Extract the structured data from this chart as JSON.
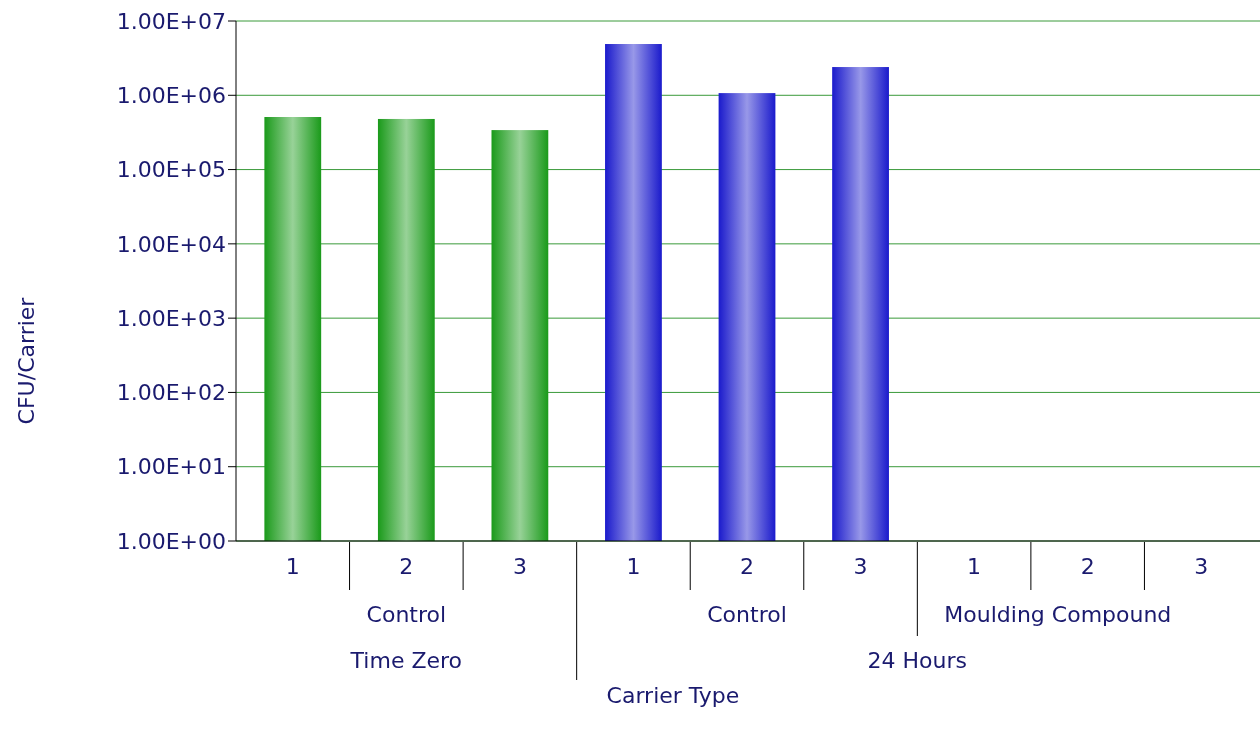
{
  "chart_data": {
    "type": "bar",
    "ylabel": "CFU/Carrier",
    "xlabel": "Carrier Type",
    "categories": [
      "1",
      "2",
      "3",
      "1",
      "2",
      "3",
      "1",
      "2",
      "3"
    ],
    "values": [
      510000,
      480000,
      340000,
      4900000,
      1070000,
      2400000,
      null,
      null,
      null
    ],
    "colors": [
      "#1a9a1a",
      "#1a9a1a",
      "#1a9a1a",
      "#1a1acc",
      "#1a1acc",
      "#1a1acc",
      "#1a1acc",
      "#1a1acc",
      "#1a1acc"
    ],
    "log": true,
    "grid": "y",
    "ylim": [
      1,
      10000000
    ],
    "yticks": [
      {
        "value": 1,
        "label": "1.00E+00"
      },
      {
        "value": 10,
        "label": "1.00E+01"
      },
      {
        "value": 100,
        "label": "1.00E+02"
      },
      {
        "value": 1000,
        "label": "1.00E+03"
      },
      {
        "value": 10000,
        "label": "1.00E+04"
      },
      {
        "value": 100000,
        "label": "1.00E+05"
      },
      {
        "value": 1000000,
        "label": "1.00E+06"
      },
      {
        "value": 10000000,
        "label": "1.00E+07"
      }
    ],
    "annotations": [
      "Control",
      "Control",
      "Moulding Compound",
      "Time Zero",
      "24 Hours"
    ]
  }
}
